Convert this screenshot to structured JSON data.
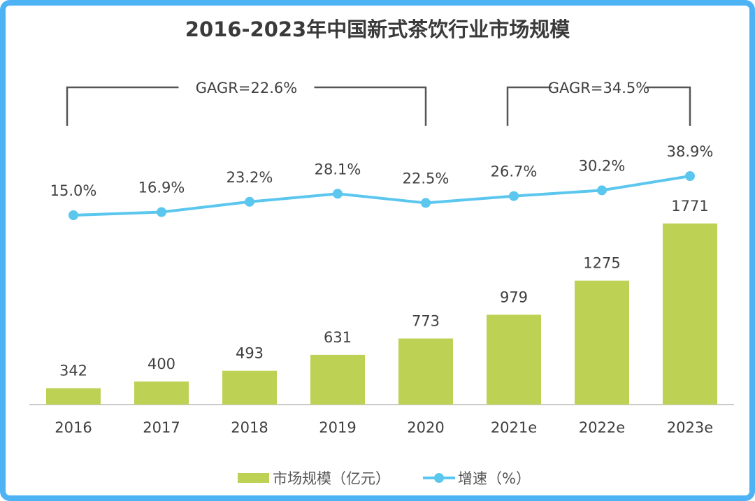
{
  "chart_data": {
    "type": "bar+line",
    "title": "2016-2023年中国新式茶饮行业市场规模",
    "categories": [
      "2016",
      "2017",
      "2018",
      "2019",
      "2020",
      "2021e",
      "2022e",
      "2023e"
    ],
    "series": [
      {
        "name": "市场规模（亿元）",
        "type": "bar",
        "values": [
          342,
          400,
          493,
          631,
          773,
          979,
          1275,
          1771
        ],
        "labels": [
          "342",
          "400",
          "493",
          "631",
          "773",
          "979",
          "1275",
          "1771"
        ],
        "color": "#bdd155"
      },
      {
        "name": "增速（%）",
        "type": "line",
        "values": [
          15.0,
          16.9,
          23.2,
          28.1,
          22.5,
          26.7,
          30.2,
          38.9
        ],
        "labels": [
          "15.0%",
          "16.9%",
          "23.2%",
          "28.1%",
          "22.5%",
          "26.7%",
          "30.2%",
          "38.9%"
        ],
        "color": "#5bc6ee"
      }
    ],
    "annotations": [
      {
        "text": "GAGR=22.6%",
        "from": "2016",
        "to": "2020"
      },
      {
        "text": "GAGR=34.5%",
        "from": "2021e",
        "to": "2023e"
      }
    ],
    "bar_ylim": [
      200,
      1900
    ],
    "legend": "bottom",
    "grid": false
  },
  "colors": {
    "border": "#4db3f5",
    "bar": "#bdd155",
    "line": "#5bc6ee",
    "bracket": "#555555"
  }
}
